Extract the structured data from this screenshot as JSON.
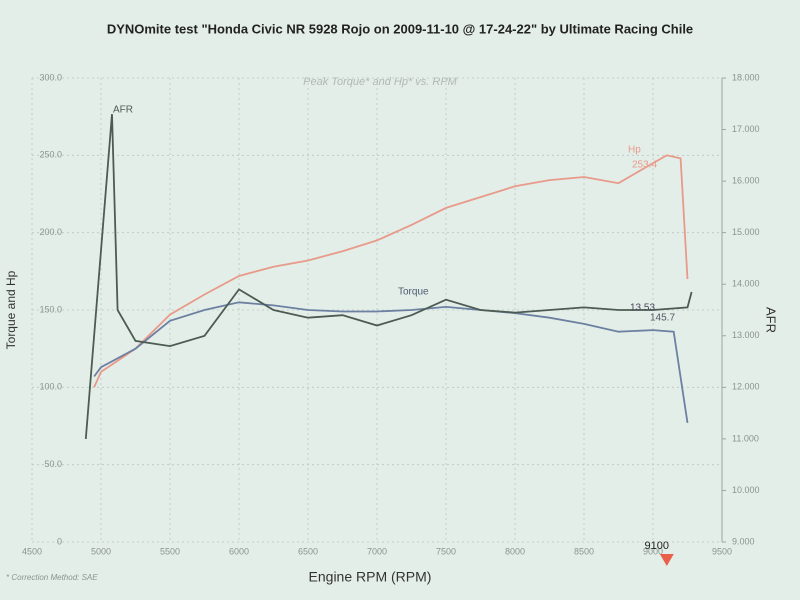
{
  "chart_data": {
    "type": "line",
    "title": "DYNOmite test \"Honda Civic NR 5928 Rojo on 2009-11-10 @ 17-24-22\" by Ultimate Racing Chile",
    "subtitle": "Peak Torque* and Hp* vs. RPM",
    "x_label": "Engine RPM (RPM)",
    "y_label": "Torque and Hp",
    "y2_label": "AFR",
    "footnote": "* Correction Method: SAE",
    "marker_rpm": 9100,
    "marker_color": "#e8604a",
    "grid": true,
    "xlim": [
      4500,
      9500
    ],
    "xticks": [
      4500,
      5000,
      5500,
      6000,
      6500,
      7000,
      7500,
      8000,
      8500,
      9000,
      9500
    ],
    "ylim": [
      0,
      300
    ],
    "yticks": [
      0,
      {
        "value": 50,
        "label": "50.0"
      },
      {
        "value": 100,
        "label": "100.0"
      },
      {
        "value": 150,
        "label": "150.0"
      },
      {
        "value": 200,
        "label": "200.0"
      },
      {
        "value": 250,
        "label": "250.0"
      },
      {
        "value": 300,
        "label": "300.0"
      }
    ],
    "y2lim": [
      9,
      18
    ],
    "y2ticks": [
      {
        "value": 9,
        "label": "9.000"
      },
      {
        "value": 10,
        "label": "10.000"
      },
      {
        "value": 11,
        "label": "11.000"
      },
      {
        "value": 12,
        "label": "12.000"
      },
      {
        "value": 13,
        "label": "13.000"
      },
      {
        "value": 14,
        "label": "14.000"
      },
      {
        "value": 15,
        "label": "15.000"
      },
      {
        "value": 16,
        "label": "16.000"
      },
      {
        "value": 17,
        "label": "17.000"
      },
      {
        "value": 18,
        "label": "18.000"
      }
    ],
    "series": [
      {
        "name": "Hp",
        "color": "#e89a8a",
        "x": [
          4950,
          5000,
          5250,
          5500,
          5750,
          6000,
          6250,
          6500,
          6750,
          7000,
          7250,
          7500,
          7750,
          8000,
          8250,
          8500,
          8750,
          9000,
          9100,
          9200,
          9250
        ],
        "values": [
          100,
          110,
          125,
          147,
          160,
          172,
          178,
          182,
          188,
          195,
          205,
          216,
          223,
          230,
          234,
          236,
          232,
          245,
          250,
          248,
          170
        ]
      },
      {
        "name": "Torque",
        "color": "#6c80a2",
        "x": [
          4950,
          5000,
          5250,
          5500,
          5750,
          6000,
          6250,
          6500,
          6750,
          7000,
          7250,
          7500,
          7750,
          8000,
          8250,
          8500,
          8750,
          9000,
          9150,
          9250
        ],
        "values": [
          107,
          113,
          125,
          143,
          150,
          155,
          153,
          150,
          149,
          149,
          150,
          152,
          150,
          148,
          145,
          141,
          136,
          137,
          136,
          77
        ]
      },
      {
        "name": "AFR",
        "color": "#4c5c52",
        "axis": "y2",
        "x": [
          4890,
          5080,
          5120,
          5250,
          5500,
          5750,
          6000,
          6250,
          6500,
          6750,
          7000,
          7250,
          7500,
          7750,
          8000,
          8250,
          8500,
          8750,
          9000,
          9250,
          9280
        ],
        "values": [
          11.0,
          17.3,
          13.5,
          12.9,
          12.8,
          13.0,
          13.9,
          13.5,
          13.35,
          13.4,
          13.2,
          13.4,
          13.7,
          13.5,
          13.45,
          13.5,
          13.55,
          13.5,
          13.5,
          13.55,
          13.85
        ]
      }
    ],
    "annotations": [
      {
        "text": "Torque"
      },
      {
        "text": "253.4"
      },
      {
        "text": "13.53"
      },
      {
        "text": "145.7"
      }
    ]
  }
}
